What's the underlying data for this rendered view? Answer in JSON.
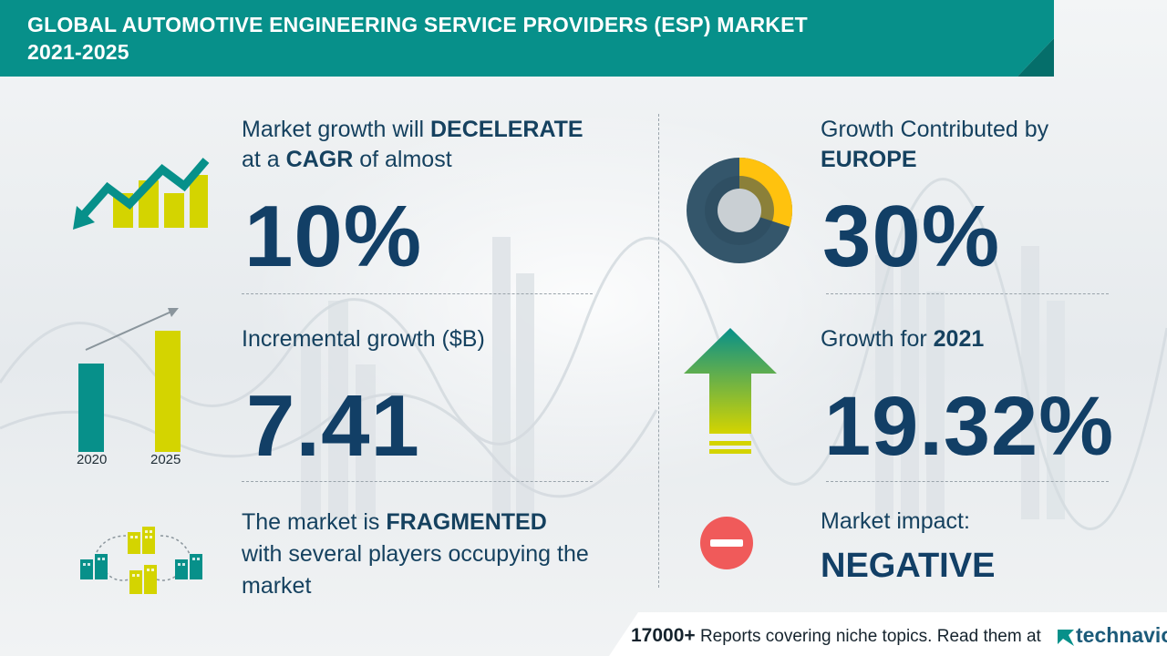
{
  "header": {
    "title_line1": "GLOBAL AUTOMOTIVE ENGINEERING SERVICE PROVIDERS (ESP) MARKET",
    "title_line2": "2021-2025"
  },
  "colors": {
    "teal": "#07908a",
    "navy": "#123f66",
    "lime": "#d4d400",
    "yellow": "#ffc20e",
    "slate": "#34566b",
    "red": "#f05a5a"
  },
  "cagr": {
    "label_part1": "Market growth will ",
    "label_bold1": "DECELERATE",
    "label_part2": "at a ",
    "label_bold2": "CAGR",
    "label_part3": " of almost",
    "value": "10%",
    "icon": "trend-arrow-icon"
  },
  "incremental": {
    "label": "Incremental growth ($B)",
    "value": "7.41",
    "icon": "bar-chart-icon",
    "years": [
      "2020",
      "2025"
    ]
  },
  "market": {
    "label_part1": "The market is ",
    "label_bold": "FRAGMENTED",
    "label_line2": "with several players occupying the",
    "label_line3": "market",
    "icon": "buildings-network-icon"
  },
  "region": {
    "label_line1": "Growth Contributed by",
    "label_bold": "EUROPE",
    "value": "30%",
    "share": 30,
    "icon": "donut-chart-icon"
  },
  "growth2021": {
    "label_part1": "Growth for ",
    "label_bold": "2021",
    "value": "19.32%",
    "icon": "up-arrow-icon"
  },
  "impact": {
    "label": "Market impact:",
    "value": "NEGATIVE",
    "icon": "minus-circle-icon"
  },
  "footer": {
    "count": "17000+",
    "text": " Reports covering niche topics. Read them at",
    "brand": "technavio",
    "icon": "technavio-logo-icon"
  }
}
